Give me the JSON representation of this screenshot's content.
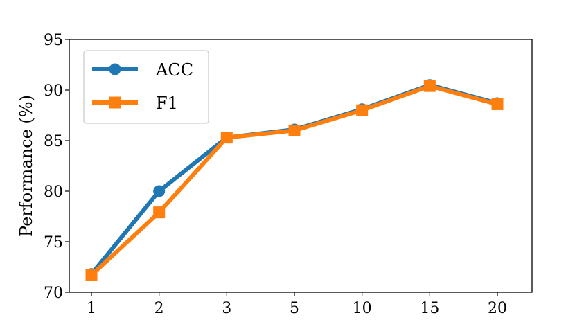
{
  "chart_data": {
    "type": "line",
    "categories": [
      "1",
      "2",
      "3",
      "5",
      "10",
      "15",
      "20"
    ],
    "series": [
      {
        "name": "ACC",
        "values": [
          71.8,
          80.0,
          85.3,
          86.1,
          88.1,
          90.5,
          88.7
        ],
        "color": "#1f77b4",
        "marker": "circle"
      },
      {
        "name": "F1",
        "values": [
          71.7,
          77.9,
          85.3,
          86.0,
          88.0,
          90.4,
          88.6
        ],
        "color": "#ff7f0e",
        "marker": "square"
      }
    ],
    "title": "",
    "xlabel": "",
    "ylabel": "Performance (%)",
    "ylim": [
      70,
      95
    ],
    "yticks": [
      70,
      75,
      80,
      85,
      90,
      95
    ],
    "grid": false,
    "legend_position": "upper-left"
  }
}
